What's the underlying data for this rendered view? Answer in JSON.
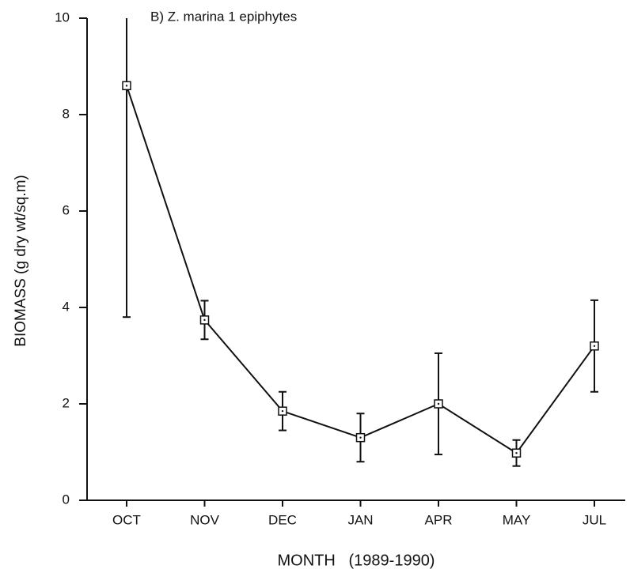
{
  "chart_data": {
    "type": "line",
    "title": "B) Z. marina 1 epiphytes",
    "x_label": "MONTH   (1989-1990)",
    "y_label": "BIOMASS (g dry wt/sq.m)",
    "categories": [
      "OCT",
      "NOV",
      "DEC",
      "JAN",
      "APR",
      "MAY",
      "JUL"
    ],
    "values": [
      8.6,
      3.74,
      1.85,
      1.3,
      2.0,
      0.98,
      3.2
    ],
    "errors": [
      4.8,
      0.4,
      0.4,
      0.5,
      1.05,
      0.27,
      0.95
    ],
    "color": "#111111",
    "ylim": [
      0,
      10
    ],
    "yticks": [
      0,
      2,
      4,
      6,
      8,
      10
    ]
  }
}
